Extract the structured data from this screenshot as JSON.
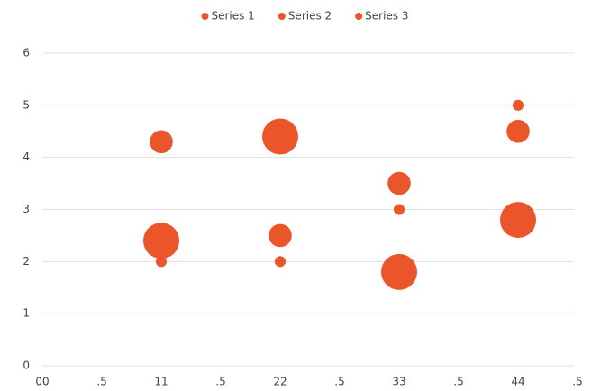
{
  "chart_data": {
    "type": "bubble",
    "x": [
      1,
      2,
      3,
      4
    ],
    "series": [
      {
        "name": "Series 1",
        "color": "#ea5529",
        "values": [
          4.3,
          2.5,
          3.5,
          4.5
        ],
        "sizes": [
          4.5,
          4.5,
          4.5,
          4.5
        ]
      },
      {
        "name": "Series 2",
        "color": "#ea5529",
        "values": [
          2,
          2,
          3,
          5
        ],
        "sizes": [
          1,
          1,
          1,
          1
        ]
      },
      {
        "name": "Series 3",
        "color": "#ea5529",
        "values": [
          2.4,
          4.4,
          1.8,
          2.8
        ],
        "sizes": [
          11,
          11,
          11,
          11
        ]
      }
    ],
    "xlim": [
      0,
      4.5
    ],
    "xticks": [
      {
        "value": 0,
        "label": "00"
      },
      {
        "value": 0.5,
        "label": ".5"
      },
      {
        "value": 1,
        "label": "11"
      },
      {
        "value": 1.5,
        "label": ".5"
      },
      {
        "value": 2,
        "label": "22"
      },
      {
        "value": 2.5,
        "label": ".5"
      },
      {
        "value": 3,
        "label": "33"
      },
      {
        "value": 3.5,
        "label": ".5"
      },
      {
        "value": 4,
        "label": "44"
      },
      {
        "value": 4.5,
        "label": ".5"
      }
    ],
    "ylim": [
      0,
      6
    ],
    "yticks": [
      0,
      1,
      2,
      3,
      4,
      5,
      6
    ],
    "grid": true,
    "legend": "top"
  }
}
